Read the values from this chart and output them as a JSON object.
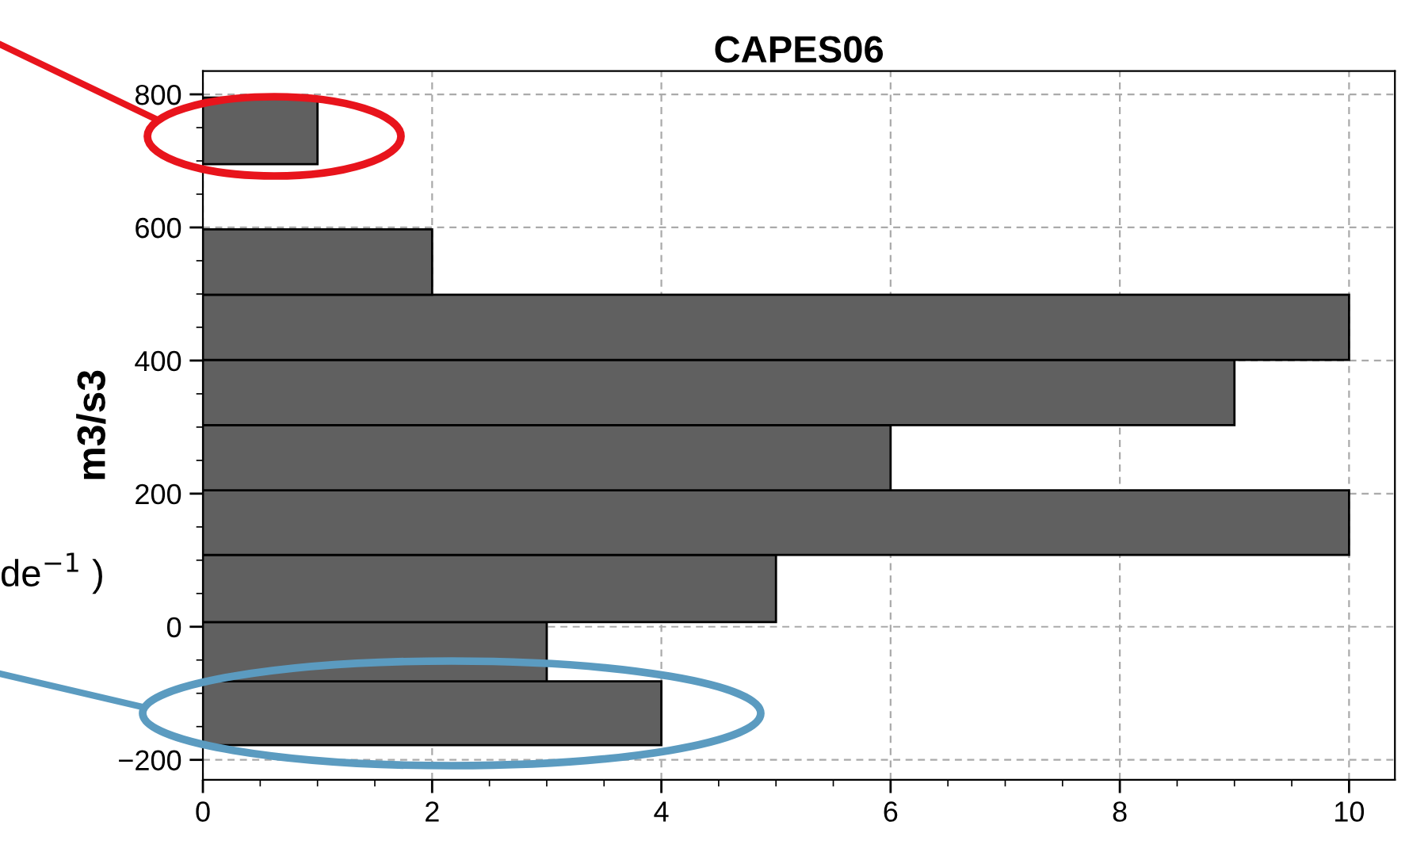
{
  "chart_data": {
    "type": "histogram",
    "orientation": "horizontal",
    "title": "CAPES06",
    "ylabel": "m3/s3",
    "bins": [
      -178,
      -82,
      7,
      108,
      205,
      303,
      401,
      499,
      597,
      695,
      795
    ],
    "values": [
      4,
      3,
      5,
      10,
      6,
      9,
      10,
      2,
      0,
      1
    ],
    "color": "#606060",
    "xlim": [
      0,
      10.4
    ],
    "xticks": [
      0,
      2,
      4,
      6,
      8,
      10
    ],
    "ylim": [
      -230,
      835
    ],
    "yticks": [
      {
        "value": -200,
        "label": "−200"
      },
      0,
      200,
      400,
      600,
      800
    ],
    "grid": true,
    "annotations": [
      "de$^{−1}$ )"
    ]
  }
}
